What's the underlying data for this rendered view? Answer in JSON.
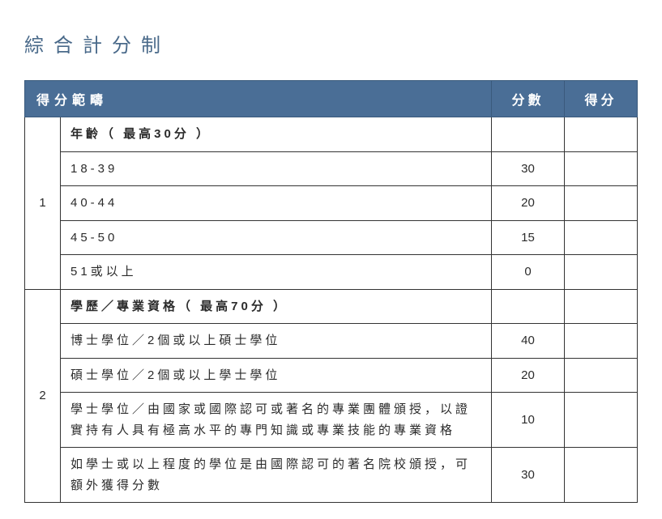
{
  "title": "綜合計分制",
  "header": {
    "category": "得分範疇",
    "points": "分數",
    "score": "得分"
  },
  "sections": [
    {
      "index": "1",
      "heading": "年齡（ 最高30分 ）",
      "rows": [
        {
          "label": "18-39",
          "points": "30"
        },
        {
          "label": "40-44",
          "points": "20"
        },
        {
          "label": "45-50",
          "points": "15"
        },
        {
          "label": "51或以上",
          "points": "0"
        }
      ]
    },
    {
      "index": "2",
      "heading": "學歷／專業資格（ 最高70分 ）",
      "rows": [
        {
          "label": "博士學位／2個或以上碩士學位",
          "points": "40"
        },
        {
          "label": "碩士學位／2個或以上學士學位",
          "points": "20"
        },
        {
          "label": "學士學位／由國家或國際認可或著名的專業團體頒授，以證實持有人具有極高水平的專門知識或專業技能的專業資格",
          "points": "10"
        },
        {
          "label": "如學士或以上程度的學位是由國際認可的著名院校頒授，可額外獲得分數",
          "points": "30"
        }
      ]
    }
  ]
}
